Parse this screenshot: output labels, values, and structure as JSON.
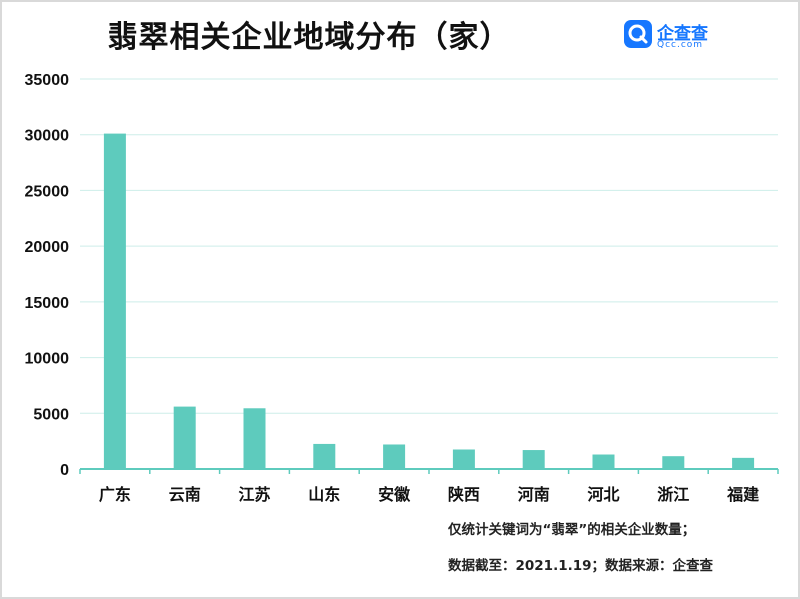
{
  "title": "翡翠相关企业地域分布（家）",
  "logo": {
    "name": "企查查",
    "domain": "Qcc.com",
    "icon": "qcc-logo-icon",
    "color": "#1677ff"
  },
  "notes": {
    "line1": "仅统计关键词为“翡翠”的相关企业数量；",
    "line2": "数据截至：2021.1.19；数据来源：企查查"
  },
  "chart_data": {
    "type": "bar",
    "title": "翡翠相关企业地域分布（家）",
    "categories": [
      "广东",
      "云南",
      "江苏",
      "山东",
      "安徽",
      "陕西",
      "河南",
      "河北",
      "浙江",
      "福建"
    ],
    "series": [
      {
        "values": [
          30100,
          5600,
          5450,
          2250,
          2200,
          1750,
          1700,
          1300,
          1150,
          1000
        ]
      }
    ],
    "ylim": [
      0,
      35000
    ],
    "yticks": [
      0,
      5000,
      10000,
      15000,
      20000,
      25000,
      30000,
      35000
    ],
    "grid": true,
    "legend": "none",
    "bar_color": "#5ecbbd",
    "grid_color": "#cdeee9",
    "axis_color": "#5ecbbd"
  }
}
